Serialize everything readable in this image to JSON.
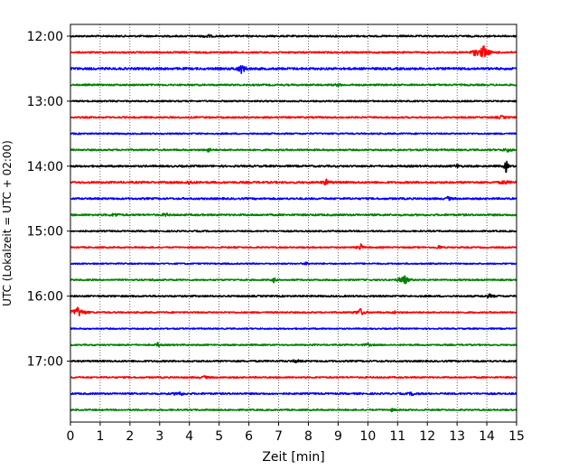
{
  "chart_data": {
    "type": "line",
    "title": "",
    "xlabel": "Zeit  [min]",
    "ylabel": "UTC (Lokalzeit = UTC + 02:00)",
    "xlim": [
      0,
      15
    ],
    "x_ticks": [
      0,
      1,
      2,
      3,
      4,
      5,
      6,
      7,
      8,
      9,
      10,
      11,
      12,
      13,
      14,
      15
    ],
    "y_tick_labels": [
      "12:00",
      "13:00",
      "14:00",
      "15:00",
      "16:00",
      "17:00"
    ],
    "y_tick_hours": [
      0,
      1,
      2,
      3,
      4,
      5
    ],
    "start_label": "12:00",
    "trace_interval_minutes": 15,
    "trace_colors": [
      "#000000",
      "#ff0000",
      "#0000ff",
      "#008000"
    ],
    "grid": "vertical dotted",
    "traces": [
      {
        "start": "12:00",
        "noise": 0.9,
        "events": [
          [
            4.6,
            2.0,
            0.08
          ]
        ]
      },
      {
        "start": "12:15",
        "noise": 0.9,
        "events": [
          [
            13.9,
            7.5,
            0.12
          ],
          [
            13.6,
            2.5,
            0.1
          ]
        ]
      },
      {
        "start": "12:30",
        "noise": 1.2,
        "events": [
          [
            5.75,
            4.5,
            0.1
          ]
        ]
      },
      {
        "start": "12:45",
        "noise": 0.9,
        "events": [
          [
            9.0,
            1.3,
            0.08
          ]
        ]
      },
      {
        "start": "13:00",
        "noise": 0.8,
        "events": []
      },
      {
        "start": "13:15",
        "noise": 0.9,
        "events": [
          [
            14.5,
            1.5,
            0.1
          ]
        ]
      },
      {
        "start": "13:30",
        "noise": 0.8,
        "events": []
      },
      {
        "start": "13:45",
        "noise": 0.9,
        "events": [
          [
            4.65,
            3.5,
            0.04
          ],
          [
            14.7,
            1.8,
            0.1
          ]
        ]
      },
      {
        "start": "14:00",
        "noise": 1.0,
        "events": [
          [
            13.0,
            2.2,
            0.06
          ],
          [
            14.65,
            8.0,
            0.04
          ]
        ]
      },
      {
        "start": "14:15",
        "noise": 1.1,
        "events": [
          [
            8.6,
            3.0,
            0.08
          ],
          [
            4.0,
            1.8,
            0.1
          ],
          [
            14.6,
            2.0,
            0.1
          ]
        ]
      },
      {
        "start": "14:30",
        "noise": 1.0,
        "events": [
          [
            12.7,
            2.0,
            0.06
          ]
        ]
      },
      {
        "start": "14:45",
        "noise": 1.0,
        "events": [
          [
            3.2,
            2.5,
            0.05
          ],
          [
            1.5,
            1.5,
            0.1
          ]
        ]
      },
      {
        "start": "15:00",
        "noise": 0.8,
        "events": []
      },
      {
        "start": "15:15",
        "noise": 0.8,
        "events": [
          [
            9.75,
            4.5,
            0.05
          ],
          [
            12.4,
            3.5,
            0.04
          ]
        ]
      },
      {
        "start": "15:30",
        "noise": 0.7,
        "events": [
          [
            7.95,
            2.5,
            0.04
          ]
        ]
      },
      {
        "start": "15:45",
        "noise": 0.8,
        "events": [
          [
            6.85,
            3.5,
            0.04
          ],
          [
            11.2,
            6.5,
            0.1
          ],
          [
            2.8,
            1.2,
            0.05
          ]
        ]
      },
      {
        "start": "16:00",
        "noise": 0.9,
        "events": [
          [
            14.1,
            1.8,
            0.1
          ]
        ]
      },
      {
        "start": "16:15",
        "noise": 0.8,
        "events": [
          [
            0.25,
            5.5,
            0.15
          ],
          [
            9.75,
            4.0,
            0.1
          ],
          [
            10.9,
            1.5,
            0.05
          ]
        ]
      },
      {
        "start": "16:30",
        "noise": 0.7,
        "events": []
      },
      {
        "start": "16:45",
        "noise": 0.8,
        "events": [
          [
            2.95,
            3.0,
            0.04
          ],
          [
            10.0,
            1.2,
            0.1
          ]
        ]
      },
      {
        "start": "17:00",
        "noise": 0.9,
        "events": [
          [
            7.6,
            1.3,
            0.1
          ]
        ]
      },
      {
        "start": "17:15",
        "noise": 0.8,
        "events": [
          [
            4.5,
            1.3,
            0.1
          ]
        ]
      },
      {
        "start": "17:30",
        "noise": 0.9,
        "events": [
          [
            3.65,
            2.5,
            0.1
          ],
          [
            11.5,
            1.6,
            0.1
          ]
        ]
      },
      {
        "start": "17:45",
        "noise": 0.8,
        "events": [
          [
            10.8,
            1.3,
            0.08
          ]
        ]
      }
    ]
  }
}
